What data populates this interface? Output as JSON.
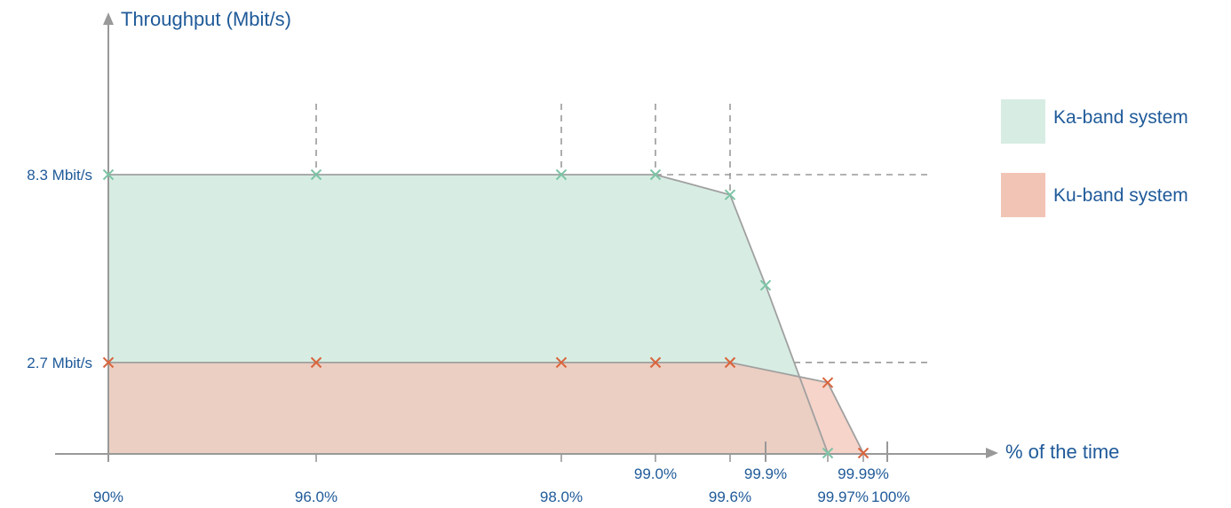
{
  "chart_data": {
    "type": "area",
    "ylabel": "Throughput (Mbit/s)",
    "xlabel": "% of the time",
    "y_ticks": [
      "8.3 Mbit/s",
      "2.7 Mbit/s"
    ],
    "y_tick_values": [
      8.3,
      2.7
    ],
    "x_ticks": [
      "90%",
      "96.0%",
      "98.0%",
      "99.0%",
      "99.6%",
      "99.9%",
      "99.97%",
      "99.99%",
      "100%"
    ],
    "legend_position": "right",
    "grid": "dashed guide lines at marked points",
    "series": [
      {
        "name": "Ka-band system",
        "color": "#d7ede3",
        "marker_color": "#7dc4a6",
        "points": [
          {
            "x": "90%",
            "y": 8.3
          },
          {
            "x": "96.0%",
            "y": 8.3
          },
          {
            "x": "98.0%",
            "y": 8.3
          },
          {
            "x": "99.0%",
            "y": 8.3
          },
          {
            "x": "99.6%",
            "y": 7.7
          },
          {
            "x": "99.9%",
            "y": 5.0
          },
          {
            "x": "99.97%",
            "y": 0
          }
        ]
      },
      {
        "name": "Ku-band system",
        "color": "#f2c4b6",
        "marker_color": "#d9643c",
        "points": [
          {
            "x": "90%",
            "y": 2.7
          },
          {
            "x": "96.0%",
            "y": 2.7
          },
          {
            "x": "98.0%",
            "y": 2.7
          },
          {
            "x": "99.0%",
            "y": 2.7
          },
          {
            "x": "99.6%",
            "y": 2.7
          },
          {
            "x": "99.97%",
            "y": 2.1
          },
          {
            "x": "99.99%",
            "y": 0
          }
        ]
      }
    ]
  }
}
